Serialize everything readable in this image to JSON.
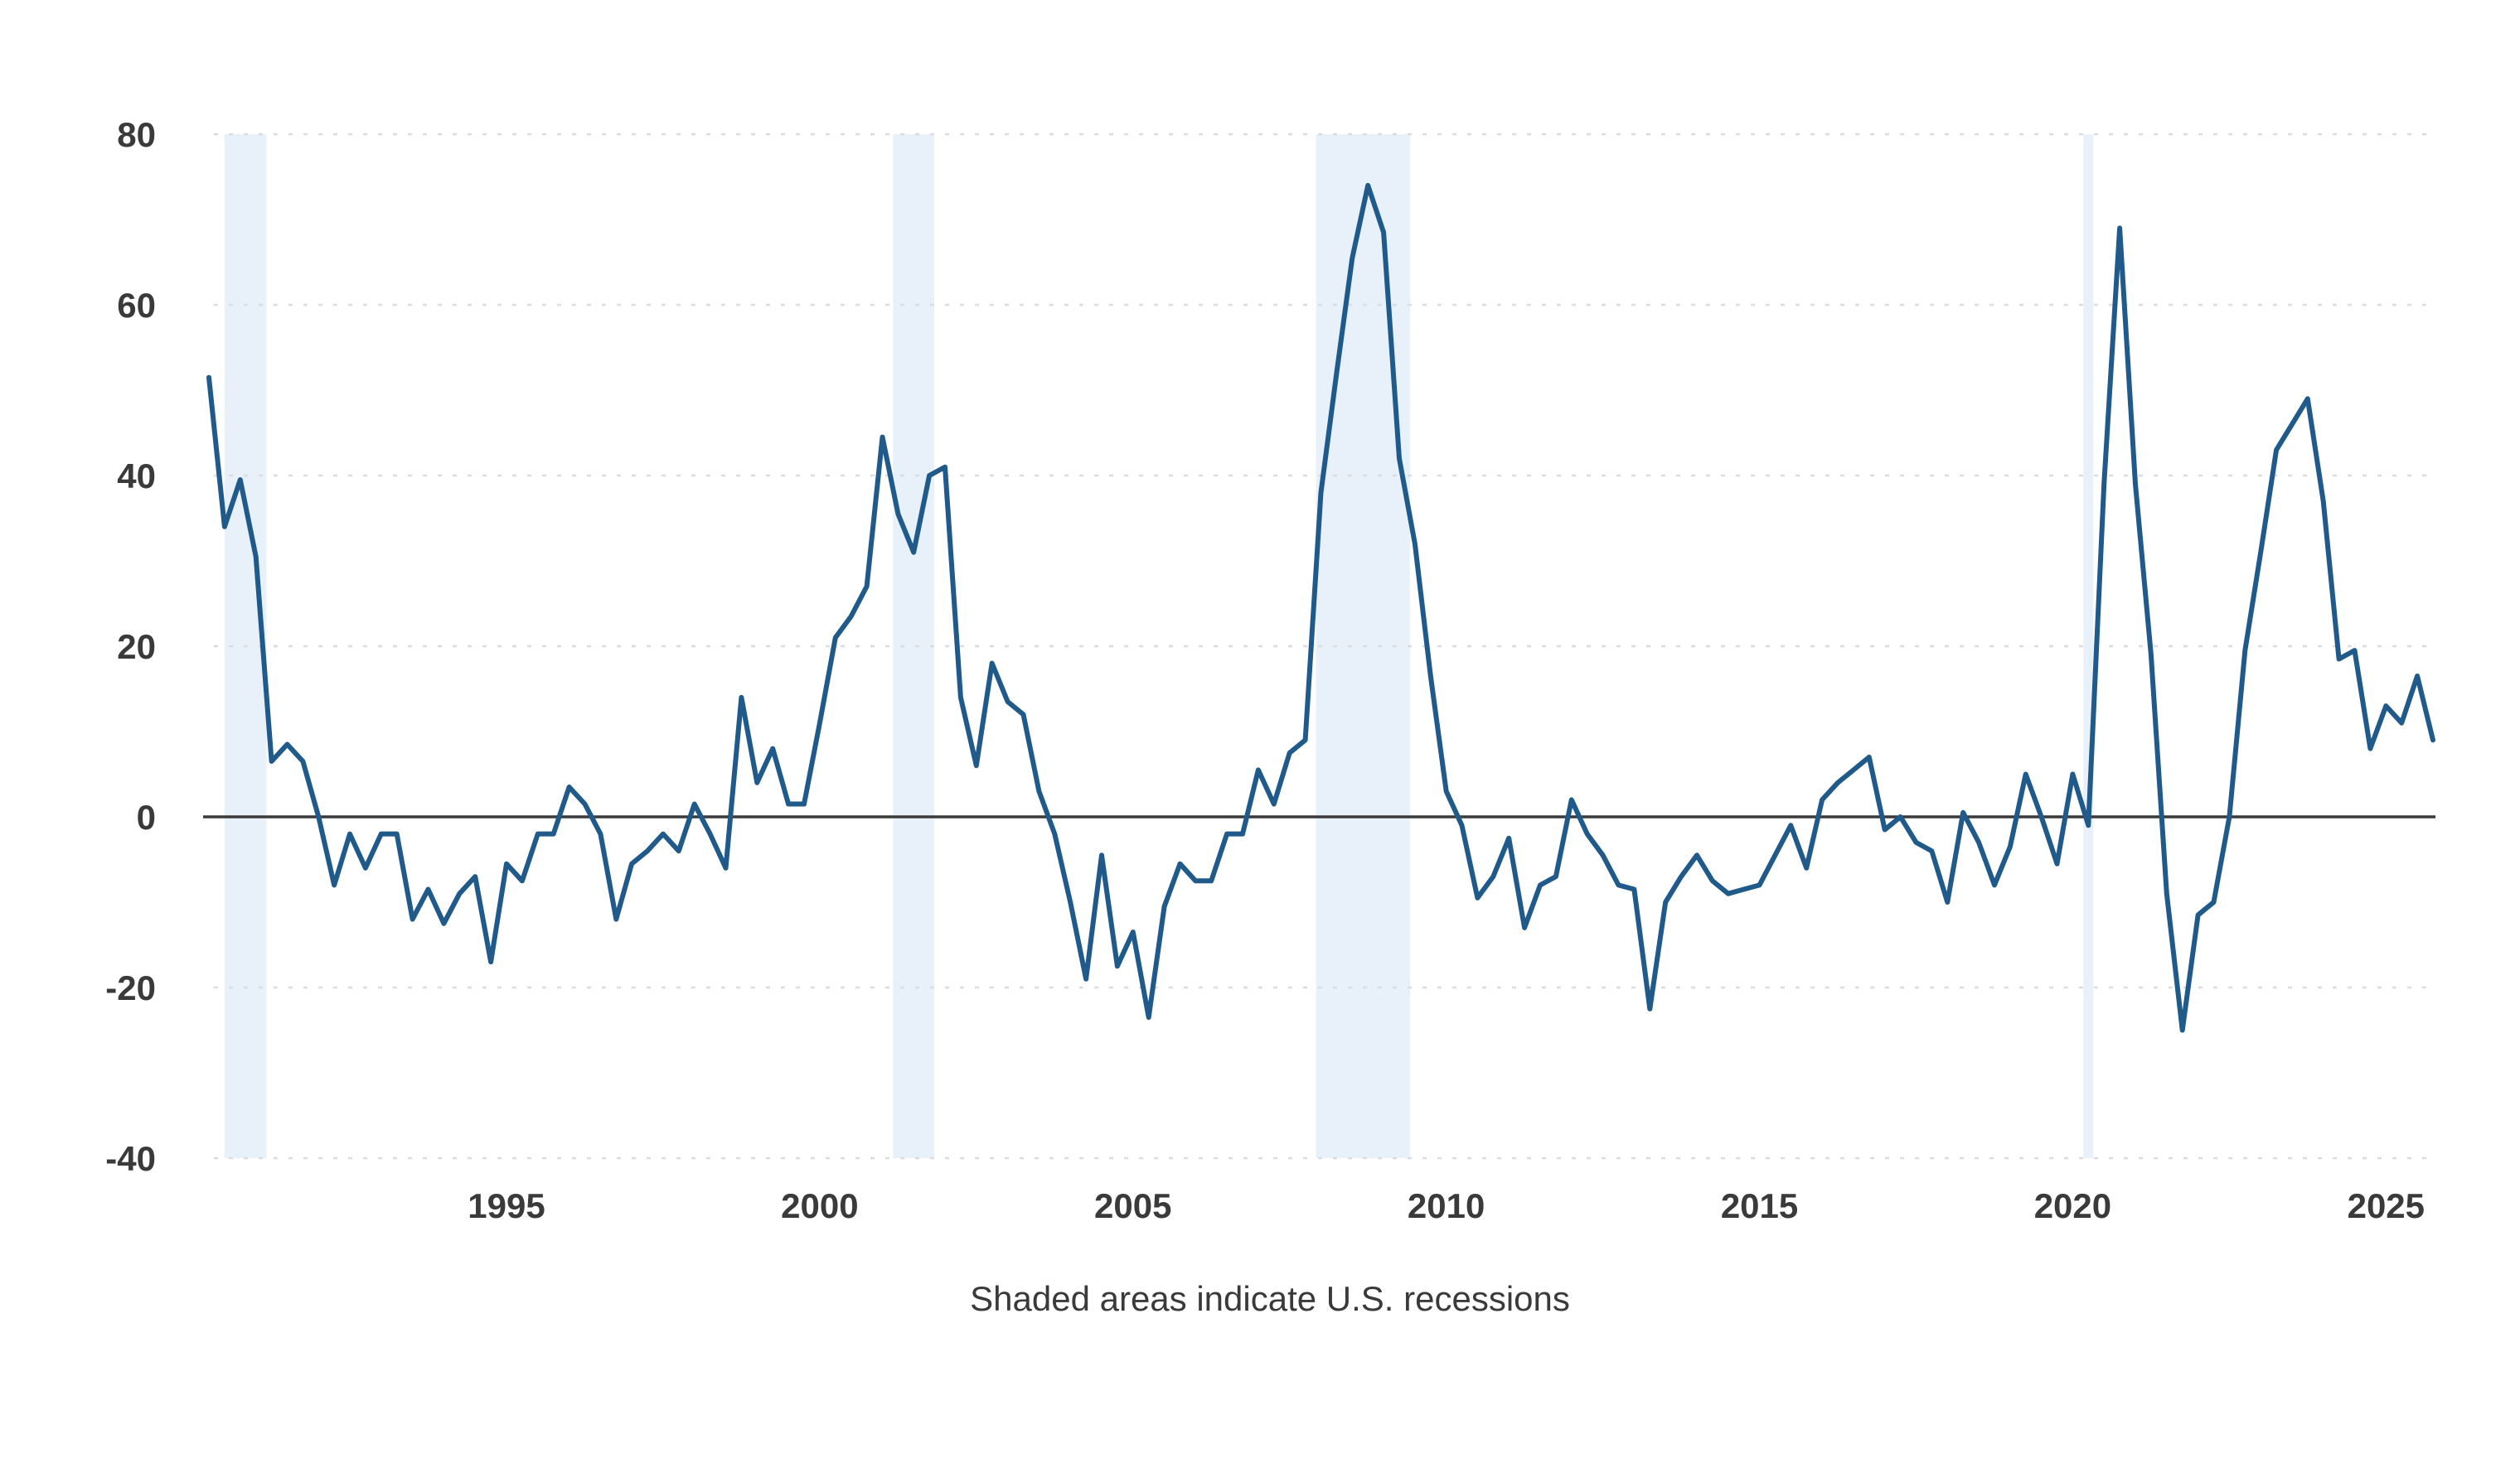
{
  "chart_data": {
    "type": "line",
    "note": "Shaded areas indicate U.S. recessions",
    "ylim": [
      -40,
      80
    ],
    "xlim": [
      1990.25,
      2025.75
    ],
    "yticks": [
      -40,
      -20,
      0,
      20,
      40,
      60,
      80
    ],
    "xticks": [
      1995,
      2000,
      2005,
      2010,
      2015,
      2020,
      2025
    ],
    "grid": "horizontal dotted",
    "zero_line": true,
    "recessions": [
      {
        "start": 1990.5,
        "end": 1991.17
      },
      {
        "start": 2001.17,
        "end": 2001.83
      },
      {
        "start": 2007.92,
        "end": 2009.42
      },
      {
        "start": 2020.17,
        "end": 2020.33
      }
    ],
    "series": [
      {
        "color": "#1f5a8a",
        "x": [
          1990.25,
          1990.5,
          1990.75,
          1991,
          1991.25,
          1991.5,
          1991.75,
          1992,
          1992.25,
          1992.5,
          1992.75,
          1993,
          1993.25,
          1993.5,
          1993.75,
          1994,
          1994.25,
          1994.5,
          1994.75,
          1995,
          1995.25,
          1995.5,
          1995.75,
          1996,
          1996.25,
          1996.5,
          1996.75,
          1997,
          1997.25,
          1997.5,
          1997.75,
          1998,
          1998.25,
          1998.5,
          1998.75,
          1999,
          1999.25,
          1999.5,
          1999.75,
          2000,
          2000.25,
          2000.5,
          2000.75,
          2001,
          2001.25,
          2001.5,
          2001.75,
          2002,
          2002.25,
          2002.5,
          2002.75,
          2003,
          2003.25,
          2003.5,
          2003.75,
          2004,
          2004.25,
          2004.5,
          2004.75,
          2005,
          2005.25,
          2005.5,
          2005.75,
          2006,
          2006.25,
          2006.5,
          2006.75,
          2007,
          2007.25,
          2007.5,
          2007.75,
          2008,
          2008.25,
          2008.5,
          2008.75,
          2009,
          2009.25,
          2009.5,
          2009.75,
          2010,
          2010.25,
          2010.5,
          2010.75,
          2011,
          2011.25,
          2011.5,
          2011.75,
          2012,
          2012.25,
          2012.5,
          2012.75,
          2013,
          2013.25,
          2013.5,
          2013.75,
          2014,
          2014.25,
          2014.5,
          2014.75,
          2015,
          2015.25,
          2015.5,
          2015.75,
          2016,
          2016.25,
          2016.5,
          2016.75,
          2017,
          2017.25,
          2017.5,
          2017.75,
          2018,
          2018.25,
          2018.5,
          2018.75,
          2019,
          2019.25,
          2019.5,
          2019.75,
          2020,
          2020.25,
          2020.5,
          2020.75,
          2021,
          2021.25,
          2021.5,
          2021.75,
          2022,
          2022.25,
          2022.5,
          2022.75,
          2023,
          2023.25,
          2023.5,
          2023.75,
          2024,
          2024.25,
          2024.5,
          2024.75,
          2025,
          2025.25,
          2025.5,
          2025.75
        ],
        "y": [
          51.5,
          34,
          39.5,
          30.5,
          6.5,
          8.5,
          6.5,
          0,
          -8,
          -2,
          -6,
          -2,
          -2,
          -12,
          -8.5,
          -12.5,
          -9,
          -7,
          -17,
          -5.5,
          -7.5,
          -2,
          -2,
          3.5,
          1.5,
          -2,
          -12,
          -5.5,
          -4,
          -2,
          -4,
          1.5,
          -2,
          -6,
          14,
          4,
          8,
          1.5,
          1.5,
          11,
          21,
          23.5,
          27,
          44.5,
          35.5,
          31,
          40,
          41,
          14,
          6,
          18,
          13.5,
          12,
          3,
          -2,
          -10,
          -19,
          -4.5,
          -17.5,
          -13.5,
          -23.5,
          -10.5,
          -5.5,
          -7.5,
          -7.5,
          -2,
          -2,
          5.5,
          1.5,
          7.5,
          9,
          38,
          52,
          65.5,
          74,
          68.5,
          42,
          32,
          16.5,
          3,
          -1,
          -9.5,
          -7,
          -2.5,
          -13,
          -8,
          -7,
          2,
          -2,
          -4.5,
          -8,
          -8.5,
          -22.5,
          -10,
          -7,
          -4.5,
          -7.5,
          -9,
          -8.5,
          -8,
          -4.5,
          -1,
          -6,
          2,
          4,
          5.5,
          7,
          -1.5,
          0,
          -3,
          -4,
          -10,
          0.5,
          -3,
          -8,
          -3.5,
          5,
          0,
          -5.5,
          5,
          -1,
          39,
          69,
          39,
          19,
          -9,
          -25,
          -11.5,
          -10,
          0,
          19.5,
          31,
          43,
          46,
          49,
          37,
          18.5,
          19.5,
          8,
          13,
          11,
          16.5,
          9
        ]
      }
    ]
  }
}
